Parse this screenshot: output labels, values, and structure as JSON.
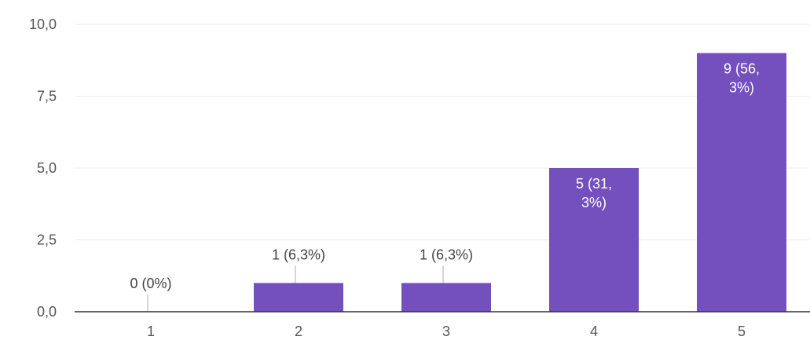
{
  "chart_data": {
    "type": "bar",
    "categories": [
      "1",
      "2",
      "3",
      "4",
      "5"
    ],
    "values": [
      0,
      1,
      1,
      5,
      9
    ],
    "data_labels": [
      [
        "0 (0%)"
      ],
      [
        "1 (6,3%)"
      ],
      [
        "1 (6,3%)"
      ],
      [
        "5 (31,",
        "3%)"
      ],
      [
        "9 (56,",
        "3%)"
      ]
    ],
    "y_ticks": [
      "0,0",
      "2,5",
      "5,0",
      "7,5",
      "10,0"
    ],
    "y_tick_values": [
      0,
      2.5,
      5,
      7.5,
      10
    ],
    "ylim": [
      0,
      10
    ],
    "grid": true,
    "legend": "none",
    "title": "",
    "xlabel": "",
    "ylabel": "",
    "bar_color": "#7350bd"
  }
}
